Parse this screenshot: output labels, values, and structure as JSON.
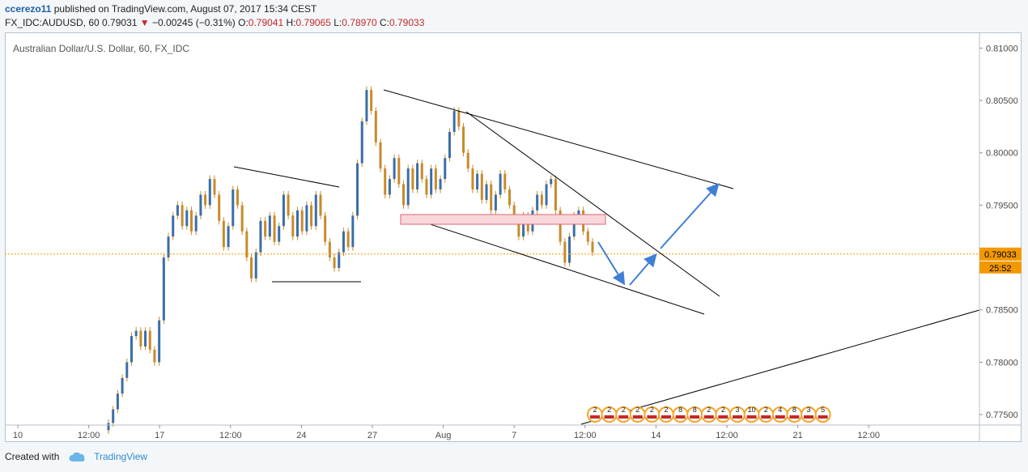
{
  "header": {
    "author": "ccerezo11",
    "published": " published on TradingView.com, August 07, 2017 15:34 CEST",
    "symbol": "FX_IDC:AUDUSD, 60",
    "last": "0.79031",
    "change_arrow": "▼",
    "change": "−0.00245 (−0.31%)",
    "o_label": "O:",
    "o_value": "0.79041",
    "h_label": "H:",
    "h_value": "0.79065",
    "l_label": "L:",
    "l_value": "0.78970",
    "c_label": "C:",
    "c_value": "0.79033"
  },
  "chart_data": {
    "type": "candlestick",
    "title": "Australian Dollar/U.S. Dollar, 60, FX_IDC",
    "y_ticks": [
      "0.81000",
      "0.80500",
      "0.80000",
      "0.79500",
      "0.79000",
      "0.78500",
      "0.78000",
      "0.77500"
    ],
    "y_tick_values": [
      0.81,
      0.805,
      0.8,
      0.795,
      0.79,
      0.785,
      0.78,
      0.775
    ],
    "ylim": [
      0.774,
      0.8115
    ],
    "x_ticks": [
      "10",
      "12:00",
      "17",
      "12:00",
      "24",
      "27",
      "Aug",
      "7",
      "12:00",
      "14",
      "12:00",
      "21",
      "12:00"
    ],
    "last_price_label": "0.79033",
    "last_price": 0.79033,
    "countdown_label": "25:52",
    "price_path": [
      [
        0.7735,
        0.7742
      ],
      [
        0.7742,
        0.7755
      ],
      [
        0.7755,
        0.777
      ],
      [
        0.777,
        0.7785
      ],
      [
        0.7785,
        0.78
      ],
      [
        0.78,
        0.7825
      ],
      [
        0.7825,
        0.783
      ],
      [
        0.783,
        0.7815
      ],
      [
        0.7815,
        0.783
      ],
      [
        0.783,
        0.7812
      ],
      [
        0.7812,
        0.78
      ],
      [
        0.78,
        0.784
      ],
      [
        0.784,
        0.79
      ],
      [
        0.79,
        0.792
      ],
      [
        0.792,
        0.794
      ],
      [
        0.794,
        0.795
      ],
      [
        0.795,
        0.793
      ],
      [
        0.793,
        0.7945
      ],
      [
        0.7945,
        0.7925
      ],
      [
        0.7925,
        0.794
      ],
      [
        0.794,
        0.796
      ],
      [
        0.796,
        0.795
      ],
      [
        0.795,
        0.7975
      ],
      [
        0.7975,
        0.796
      ],
      [
        0.796,
        0.7935
      ],
      [
        0.7935,
        0.791
      ],
      [
        0.791,
        0.793
      ],
      [
        0.793,
        0.7965
      ],
      [
        0.7965,
        0.795
      ],
      [
        0.795,
        0.7925
      ],
      [
        0.7925,
        0.79
      ],
      [
        0.79,
        0.788
      ],
      [
        0.788,
        0.7905
      ],
      [
        0.7905,
        0.7935
      ],
      [
        0.7935,
        0.792
      ],
      [
        0.792,
        0.794
      ],
      [
        0.794,
        0.7915
      ],
      [
        0.7915,
        0.793
      ],
      [
        0.793,
        0.796
      ],
      [
        0.796,
        0.794
      ],
      [
        0.794,
        0.792
      ],
      [
        0.792,
        0.7945
      ],
      [
        0.7945,
        0.7925
      ],
      [
        0.7925,
        0.795
      ],
      [
        0.795,
        0.793
      ],
      [
        0.793,
        0.796
      ],
      [
        0.796,
        0.794
      ],
      [
        0.794,
        0.7915
      ],
      [
        0.7915,
        0.79
      ],
      [
        0.79,
        0.789
      ],
      [
        0.789,
        0.7905
      ],
      [
        0.7905,
        0.7925
      ],
      [
        0.7925,
        0.791
      ],
      [
        0.791,
        0.794
      ],
      [
        0.794,
        0.799
      ],
      [
        0.799,
        0.803
      ],
      [
        0.803,
        0.806
      ],
      [
        0.806,
        0.804
      ],
      [
        0.804,
        0.801
      ],
      [
        0.801,
        0.7985
      ],
      [
        0.7985,
        0.796
      ],
      [
        0.796,
        0.7975
      ],
      [
        0.7975,
        0.7995
      ],
      [
        0.7995,
        0.797
      ],
      [
        0.797,
        0.795
      ],
      [
        0.795,
        0.7985
      ],
      [
        0.7985,
        0.7965
      ],
      [
        0.7965,
        0.799
      ],
      [
        0.799,
        0.7975
      ],
      [
        0.7975,
        0.796
      ],
      [
        0.796,
        0.7985
      ],
      [
        0.7985,
        0.7965
      ],
      [
        0.7965,
        0.7975
      ],
      [
        0.7975,
        0.7995
      ],
      [
        0.7995,
        0.802
      ],
      [
        0.802,
        0.804
      ],
      [
        0.804,
        0.8025
      ],
      [
        0.8025,
        0.8
      ],
      [
        0.8,
        0.7985
      ],
      [
        0.7985,
        0.7965
      ],
      [
        0.7965,
        0.798
      ],
      [
        0.798,
        0.7955
      ],
      [
        0.7955,
        0.797
      ],
      [
        0.797,
        0.7945
      ],
      [
        0.7945,
        0.796
      ],
      [
        0.796,
        0.798
      ],
      [
        0.798,
        0.7965
      ],
      [
        0.7965,
        0.795
      ],
      [
        0.795,
        0.7935
      ],
      [
        0.7935,
        0.792
      ],
      [
        0.792,
        0.794
      ],
      [
        0.794,
        0.7925
      ],
      [
        0.7925,
        0.7945
      ],
      [
        0.7945,
        0.796
      ],
      [
        0.796,
        0.795
      ],
      [
        0.795,
        0.797
      ],
      [
        0.797,
        0.7975
      ],
      [
        0.7975,
        0.7945
      ],
      [
        0.7945,
        0.7915
      ],
      [
        0.7915,
        0.7895
      ],
      [
        0.7895,
        0.792
      ],
      [
        0.792,
        0.794
      ],
      [
        0.794,
        0.7945
      ],
      [
        0.7945,
        0.7925
      ],
      [
        0.7925,
        0.7915
      ],
      [
        0.7915,
        0.7905
      ]
    ],
    "event_badges": [
      "2",
      "2",
      "2",
      "2",
      "2",
      "2",
      "8",
      "8",
      "2",
      "2",
      "3",
      "10",
      "2",
      "4",
      "8",
      "3",
      "5"
    ]
  },
  "footer": {
    "created_with": "Created with",
    "brand": "TradingView"
  },
  "colors": {
    "trendline": "#000000",
    "arrow": "#3f7fd6",
    "zone_fill": "#f8d7da",
    "zone_stroke": "#e06672",
    "price_line": "#f29900",
    "candle": "#c88a2a",
    "badge_ring": "#f2a52b"
  }
}
